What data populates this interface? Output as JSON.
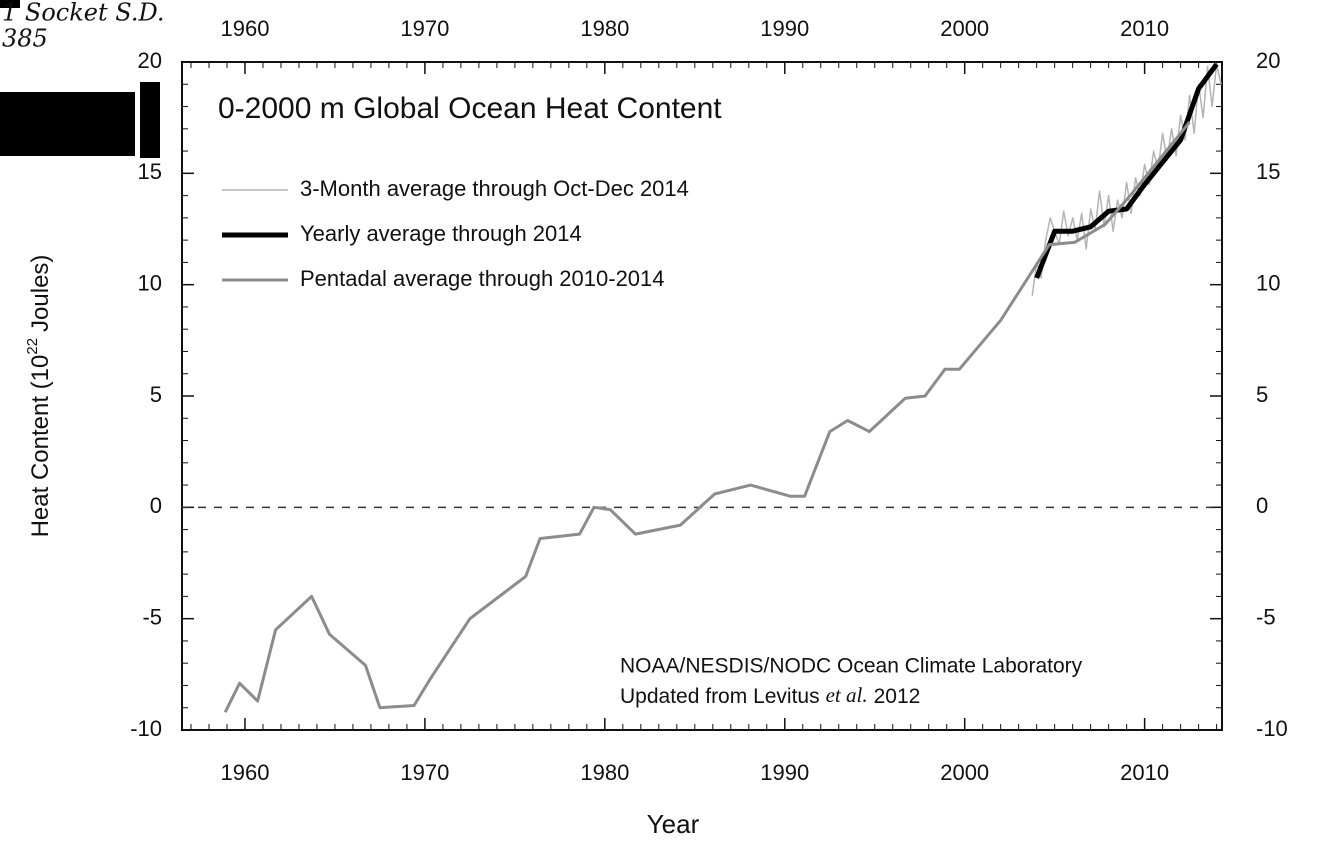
{
  "chart_data": {
    "type": "line",
    "title": "0-2000 m Global Ocean Heat Content",
    "x_label": "Year",
    "y_label": [
      "Heat Content (10",
      "22",
      "Joules)"
    ],
    "handwritten_notes": [
      "1 Socket S.D.",
      "385"
    ],
    "annotations": [
      "NOAA/NESDIS/NODC Ocean Climate Laboratory",
      [
        "Updated from Levitus",
        "et al.",
        "2012"
      ]
    ],
    "xlim": [
      1956.5,
      2014.3
    ],
    "ylim": [
      -10,
      20
    ],
    "xticks": [
      1960,
      1970,
      1980,
      1990,
      2000,
      2010
    ],
    "yticks": [
      -10,
      -5,
      0,
      5,
      10,
      15,
      20
    ],
    "minor_step": {
      "x": 1,
      "y": 1
    },
    "reference_line": 0,
    "series": [
      {
        "name": "3-Month average through Oct-Dec 2014",
        "color": "#b4b4b4",
        "width": 1.5,
        "x": [
          2003.75,
          2004.0,
          2004.25,
          2004.5,
          2004.75,
          2005.0,
          2005.25,
          2005.5,
          2005.75,
          2006.0,
          2006.25,
          2006.5,
          2006.75,
          2007.0,
          2007.25,
          2007.5,
          2007.75,
          2008.0,
          2008.25,
          2008.5,
          2008.75,
          2009.0,
          2009.25,
          2009.5,
          2009.75,
          2010.0,
          2010.25,
          2010.5,
          2010.75,
          2011.0,
          2011.25,
          2011.5,
          2011.75,
          2012.0,
          2012.25,
          2012.5,
          2012.75,
          2013.0,
          2013.25,
          2013.5,
          2013.75,
          2014.0,
          2014.25
        ],
        "values": [
          9.5,
          11.0,
          10.3,
          12.0,
          13.0,
          12.4,
          11.8,
          13.3,
          12.2,
          13.0,
          12.0,
          13.2,
          11.6,
          13.4,
          12.5,
          14.2,
          12.6,
          14.0,
          12.4,
          13.8,
          13.0,
          14.6,
          13.2,
          14.8,
          14.0,
          15.4,
          14.5,
          16.0,
          15.2,
          16.8,
          15.6,
          17.0,
          15.8,
          17.6,
          16.5,
          18.5,
          16.8,
          19.0,
          17.5,
          19.8,
          18.0,
          19.9,
          19.0
        ]
      },
      {
        "name": "Yearly average through 2014",
        "color": "#000000",
        "width": 5,
        "x": [
          2004,
          2005,
          2006,
          2007,
          2008,
          2009,
          2010,
          2011,
          2012,
          2013,
          2014
        ],
        "values": [
          10.3,
          12.4,
          12.4,
          12.6,
          13.3,
          13.4,
          14.5,
          15.5,
          16.5,
          18.8,
          19.9
        ]
      },
      {
        "name": "Pentadal average through 2010-2014",
        "color": "#8c8c8c",
        "width": 3,
        "x": [
          1958.9,
          1959.7,
          1960.7,
          1961.7,
          1963.7,
          1964.7,
          1966.7,
          1967.5,
          1969.4,
          1970.3,
          1972.5,
          1975.6,
          1976.4,
          1978.6,
          1979.4,
          1980.3,
          1981.7,
          1984.2,
          1986.1,
          1988.1,
          1990.3,
          1991.1,
          1992.5,
          1993.5,
          1994.7,
          1996.7,
          1997.8,
          1998.9,
          1999.7,
          2002.0,
          2004.7,
          2006.1,
          2007.8,
          2009.2,
          2012.5
        ],
        "values": [
          -9.2,
          -7.9,
          -8.7,
          -5.5,
          -4.0,
          -5.7,
          -7.1,
          -9.0,
          -8.9,
          -7.7,
          -5.0,
          -3.1,
          -1.4,
          -1.2,
          0,
          -0.1,
          -1.2,
          -0.8,
          0.6,
          1.0,
          0.5,
          0.5,
          3.4,
          3.9,
          3.4,
          4.9,
          5.0,
          6.2,
          6.2,
          8.4,
          11.8,
          11.9,
          12.7,
          14.0,
          17.3
        ]
      }
    ]
  }
}
